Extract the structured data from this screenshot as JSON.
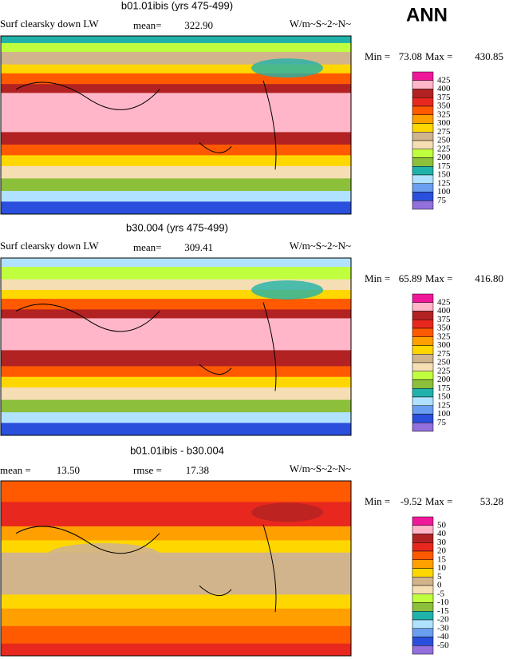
{
  "header": {
    "season": "ANN"
  },
  "panels": [
    {
      "title": "b01.01ibis (yrs 475-499)",
      "field": "Surf clearsky down LW",
      "mean_label": "mean=",
      "mean": "322.90",
      "units": "W/m~S~2~N~",
      "min_label": "Min =",
      "min": "73.08",
      "max_label": "Max =",
      "max": "430.85",
      "colorbar": {
        "levels": [
          "425",
          "400",
          "375",
          "350",
          "325",
          "300",
          "275",
          "250",
          "225",
          "200",
          "175",
          "150",
          "125",
          "100",
          "75"
        ],
        "colors": [
          "#f0189a",
          "#ffb6c8",
          "#b22222",
          "#e8281e",
          "#ff5a00",
          "#ffa000",
          "#ffd700",
          "#d2b48c",
          "#f5deb3",
          "#c0ff3e",
          "#8cbf3a",
          "#20b2aa",
          "#b0e2ff",
          "#6a9ef0",
          "#2a4fdc",
          "#9370db"
        ]
      }
    },
    {
      "title": "b30.004 (yrs 475-499)",
      "field": "Surf clearsky down LW",
      "mean_label": "mean=",
      "mean": "309.41",
      "units": "W/m~S~2~N~",
      "min_label": "Min =",
      "min": "65.89",
      "max_label": "Max =",
      "max": "416.80",
      "colorbar": {
        "levels": [
          "425",
          "400",
          "375",
          "350",
          "325",
          "300",
          "275",
          "250",
          "225",
          "200",
          "175",
          "150",
          "125",
          "100",
          "75"
        ],
        "colors": [
          "#f0189a",
          "#ffb6c8",
          "#b22222",
          "#e8281e",
          "#ff5a00",
          "#ffa000",
          "#ffd700",
          "#d2b48c",
          "#f5deb3",
          "#c0ff3e",
          "#8cbf3a",
          "#20b2aa",
          "#b0e2ff",
          "#6a9ef0",
          "#2a4fdc",
          "#9370db"
        ]
      }
    },
    {
      "title": "b01.01ibis - b30.004",
      "mean_label": "mean =",
      "mean": "13.50",
      "rmse_label": "rmse =",
      "rmse": "17.38",
      "units": "W/m~S~2~N~",
      "min_label": "Min =",
      "min": "-9.52",
      "max_label": "Max =",
      "max": "53.28",
      "colorbar": {
        "levels": [
          "50",
          "40",
          "30",
          "20",
          "15",
          "10",
          "5",
          "0",
          "-5",
          "-10",
          "-15",
          "-20",
          "-30",
          "-40",
          "-50"
        ],
        "colors": [
          "#f0189a",
          "#ffb6c8",
          "#b22222",
          "#e8281e",
          "#ff5a00",
          "#ffa000",
          "#ffd700",
          "#d2b48c",
          "#f5deb3",
          "#c0ff3e",
          "#8cbf3a",
          "#20b2aa",
          "#b0e2ff",
          "#6a9ef0",
          "#2a4fdc",
          "#9370db"
        ]
      }
    }
  ]
}
